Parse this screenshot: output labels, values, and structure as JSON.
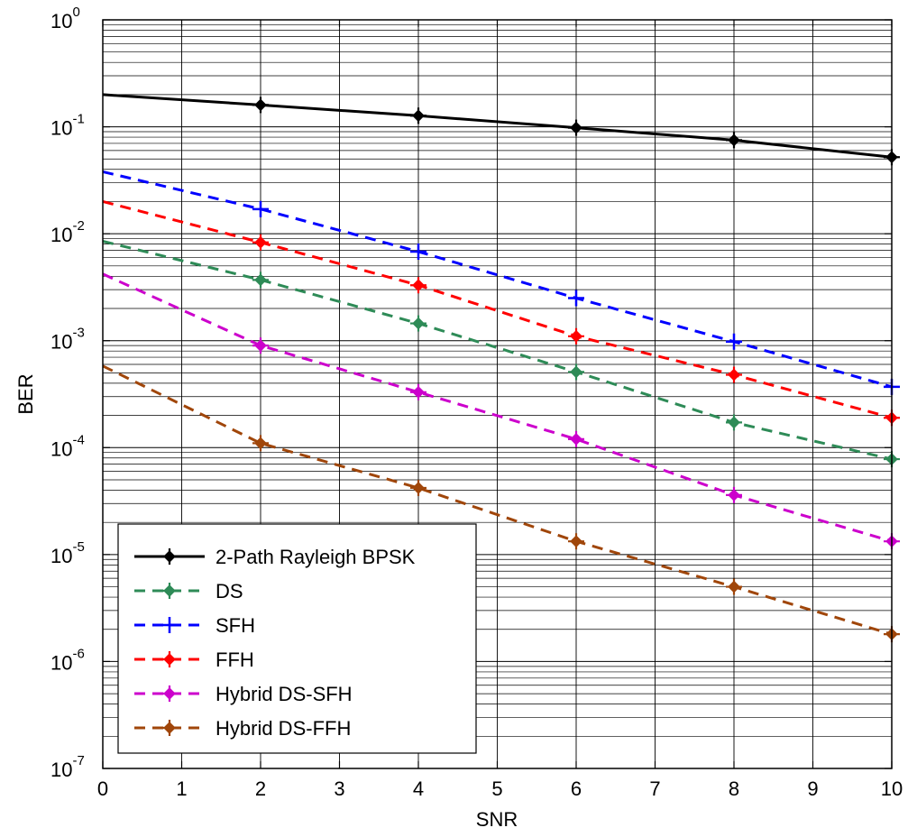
{
  "chart_data": {
    "type": "line",
    "title": "",
    "xlabel": "SNR",
    "ylabel": "BER",
    "xlim": [
      0,
      10
    ],
    "ylim": [
      1e-07,
      1
    ],
    "yscale": "log",
    "grid": true,
    "legend_position": "bottom-left",
    "x_ticks": [
      "0",
      "1",
      "2",
      "3",
      "4",
      "5",
      "6",
      "7",
      "8",
      "9",
      "10"
    ],
    "y_ticks": [
      {
        "base": "10",
        "exp": "0"
      },
      {
        "base": "10",
        "exp": "-1"
      },
      {
        "base": "10",
        "exp": "-2"
      },
      {
        "base": "10",
        "exp": "-3"
      },
      {
        "base": "10",
        "exp": "-4"
      },
      {
        "base": "10",
        "exp": "-5"
      },
      {
        "base": "10",
        "exp": "-6"
      },
      {
        "base": "10",
        "exp": "-7"
      }
    ],
    "series": [
      {
        "name": "2-Path Rayleigh BPSK",
        "color": "#000000",
        "dash": "solid",
        "marker": "diamond",
        "x": [
          0,
          2,
          4,
          6,
          8,
          10
        ],
        "y": [
          0.2,
          0.16,
          0.127,
          0.098,
          0.075,
          0.052
        ]
      },
      {
        "name": "DS",
        "color": "#2e8b57",
        "dash": "dashed",
        "marker": "diamond",
        "x": [
          0,
          2,
          4,
          6,
          8,
          10
        ],
        "y": [
          0.0085,
          0.0037,
          0.00145,
          0.00051,
          0.000172,
          7.8e-05
        ]
      },
      {
        "name": "SFH",
        "color": "#0000ff",
        "dash": "dashed",
        "marker": "plus",
        "x": [
          0,
          2,
          4,
          6,
          8,
          10
        ],
        "y": [
          0.038,
          0.017,
          0.0068,
          0.0025,
          0.00098,
          0.00037
        ]
      },
      {
        "name": "FFH",
        "color": "#ff0000",
        "dash": "dashed",
        "marker": "diamond",
        "x": [
          0,
          2,
          4,
          6,
          8,
          10
        ],
        "y": [
          0.02,
          0.0083,
          0.0033,
          0.0011,
          0.00048,
          0.00019
        ]
      },
      {
        "name": "Hybrid DS-SFH",
        "color": "#cc00cc",
        "dash": "dashed",
        "marker": "diamond",
        "x": [
          0,
          2,
          4,
          6,
          8,
          10
        ],
        "y": [
          0.0042,
          0.0009,
          0.00033,
          0.00012,
          3.6e-05,
          1.33e-05
        ]
      },
      {
        "name": "Hybrid DS-FFH",
        "color": "#a0460a",
        "dash": "dashed",
        "marker": "diamond",
        "x": [
          0,
          2,
          4,
          6,
          8,
          10
        ],
        "y": [
          0.00058,
          0.00011,
          4.2e-05,
          1.33e-05,
          5e-06,
          1.8e-06
        ]
      }
    ]
  }
}
